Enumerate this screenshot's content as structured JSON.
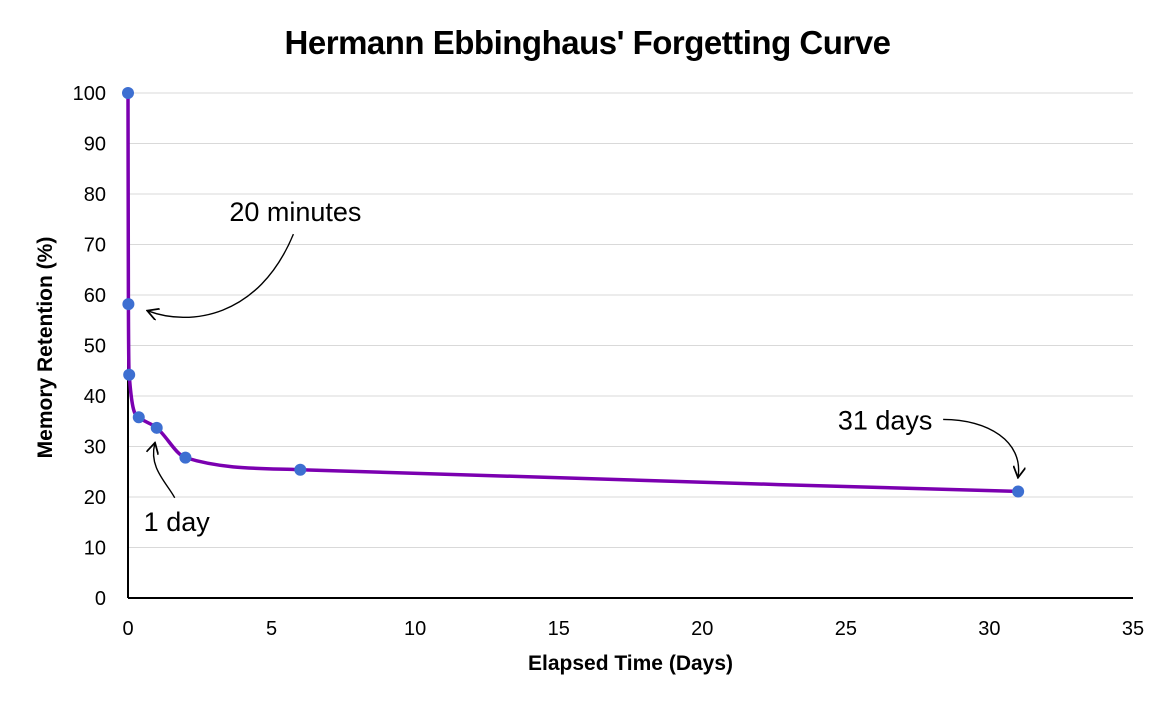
{
  "chart_data": {
    "type": "line",
    "title": "Hermann Ebbinghaus' Forgetting Curve",
    "xlabel": "Elapsed Time (Days)",
    "ylabel": "Memory Retention (%)",
    "xlim": [
      0,
      35
    ],
    "ylim": [
      0,
      100
    ],
    "x_ticks": [
      0,
      5,
      10,
      15,
      20,
      25,
      30,
      35
    ],
    "y_ticks": [
      0,
      10,
      20,
      30,
      40,
      50,
      60,
      70,
      80,
      90,
      100
    ],
    "grid": "horizontal",
    "line_color": "#7b00b0",
    "marker_color": "#3d6fd1",
    "series": [
      {
        "points": [
          {
            "x": 0,
            "y": 100
          },
          {
            "x": 0.0139,
            "y": 58.2
          },
          {
            "x": 0.0417,
            "y": 44.2
          },
          {
            "x": 0.375,
            "y": 35.8
          },
          {
            "x": 1,
            "y": 33.7
          },
          {
            "x": 2,
            "y": 27.8
          },
          {
            "x": 6,
            "y": 25.4
          },
          {
            "x": 31,
            "y": 21.1
          }
        ]
      }
    ],
    "annotations": [
      {
        "text": "20 minutes",
        "x": 0.0139,
        "y": 58.2
      },
      {
        "text": "1 day",
        "x": 1,
        "y": 33.7
      },
      {
        "text": "31 days",
        "x": 31,
        "y": 21.1
      }
    ]
  }
}
